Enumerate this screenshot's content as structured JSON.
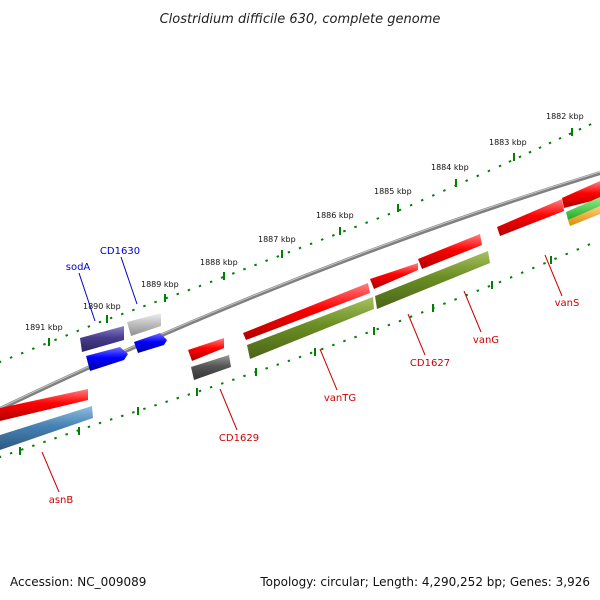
{
  "title": "Clostridium difficile 630, complete genome",
  "footer": {
    "accession": "Accession: NC_009089",
    "summary": "Topology: circular; Length: 4,290,252 bp; Genes: 3,926"
  },
  "ticks": [
    "1891 kbp",
    "1890 kbp",
    "1889 kbp",
    "1888 kbp",
    "1887 kbp",
    "1886 kbp",
    "1885 kbp",
    "1884 kbp",
    "1883 kbp",
    "1882 kbp"
  ],
  "genes": {
    "sodA": "sodA",
    "cd1630": "CD1630",
    "asnB": "asnB",
    "cd1629": "CD1629",
    "vanTG": "vanTG",
    "cd1627": "CD1627",
    "vanG": "vanG",
    "vanS": "vanS"
  },
  "colors": {
    "cds": "#ff0000",
    "backbone": "#808080",
    "olive": "#6b8e23",
    "steelblue": "#4682b4",
    "navy": "#483d8b",
    "blue": "#0000ff",
    "gray": "#c0c0c0",
    "darkgray": "#555555",
    "green": "#32cd32",
    "orange": "#ffa500",
    "tick": "#008000",
    "label_blue": "#0000cc",
    "label_red": "#cc0000"
  }
}
